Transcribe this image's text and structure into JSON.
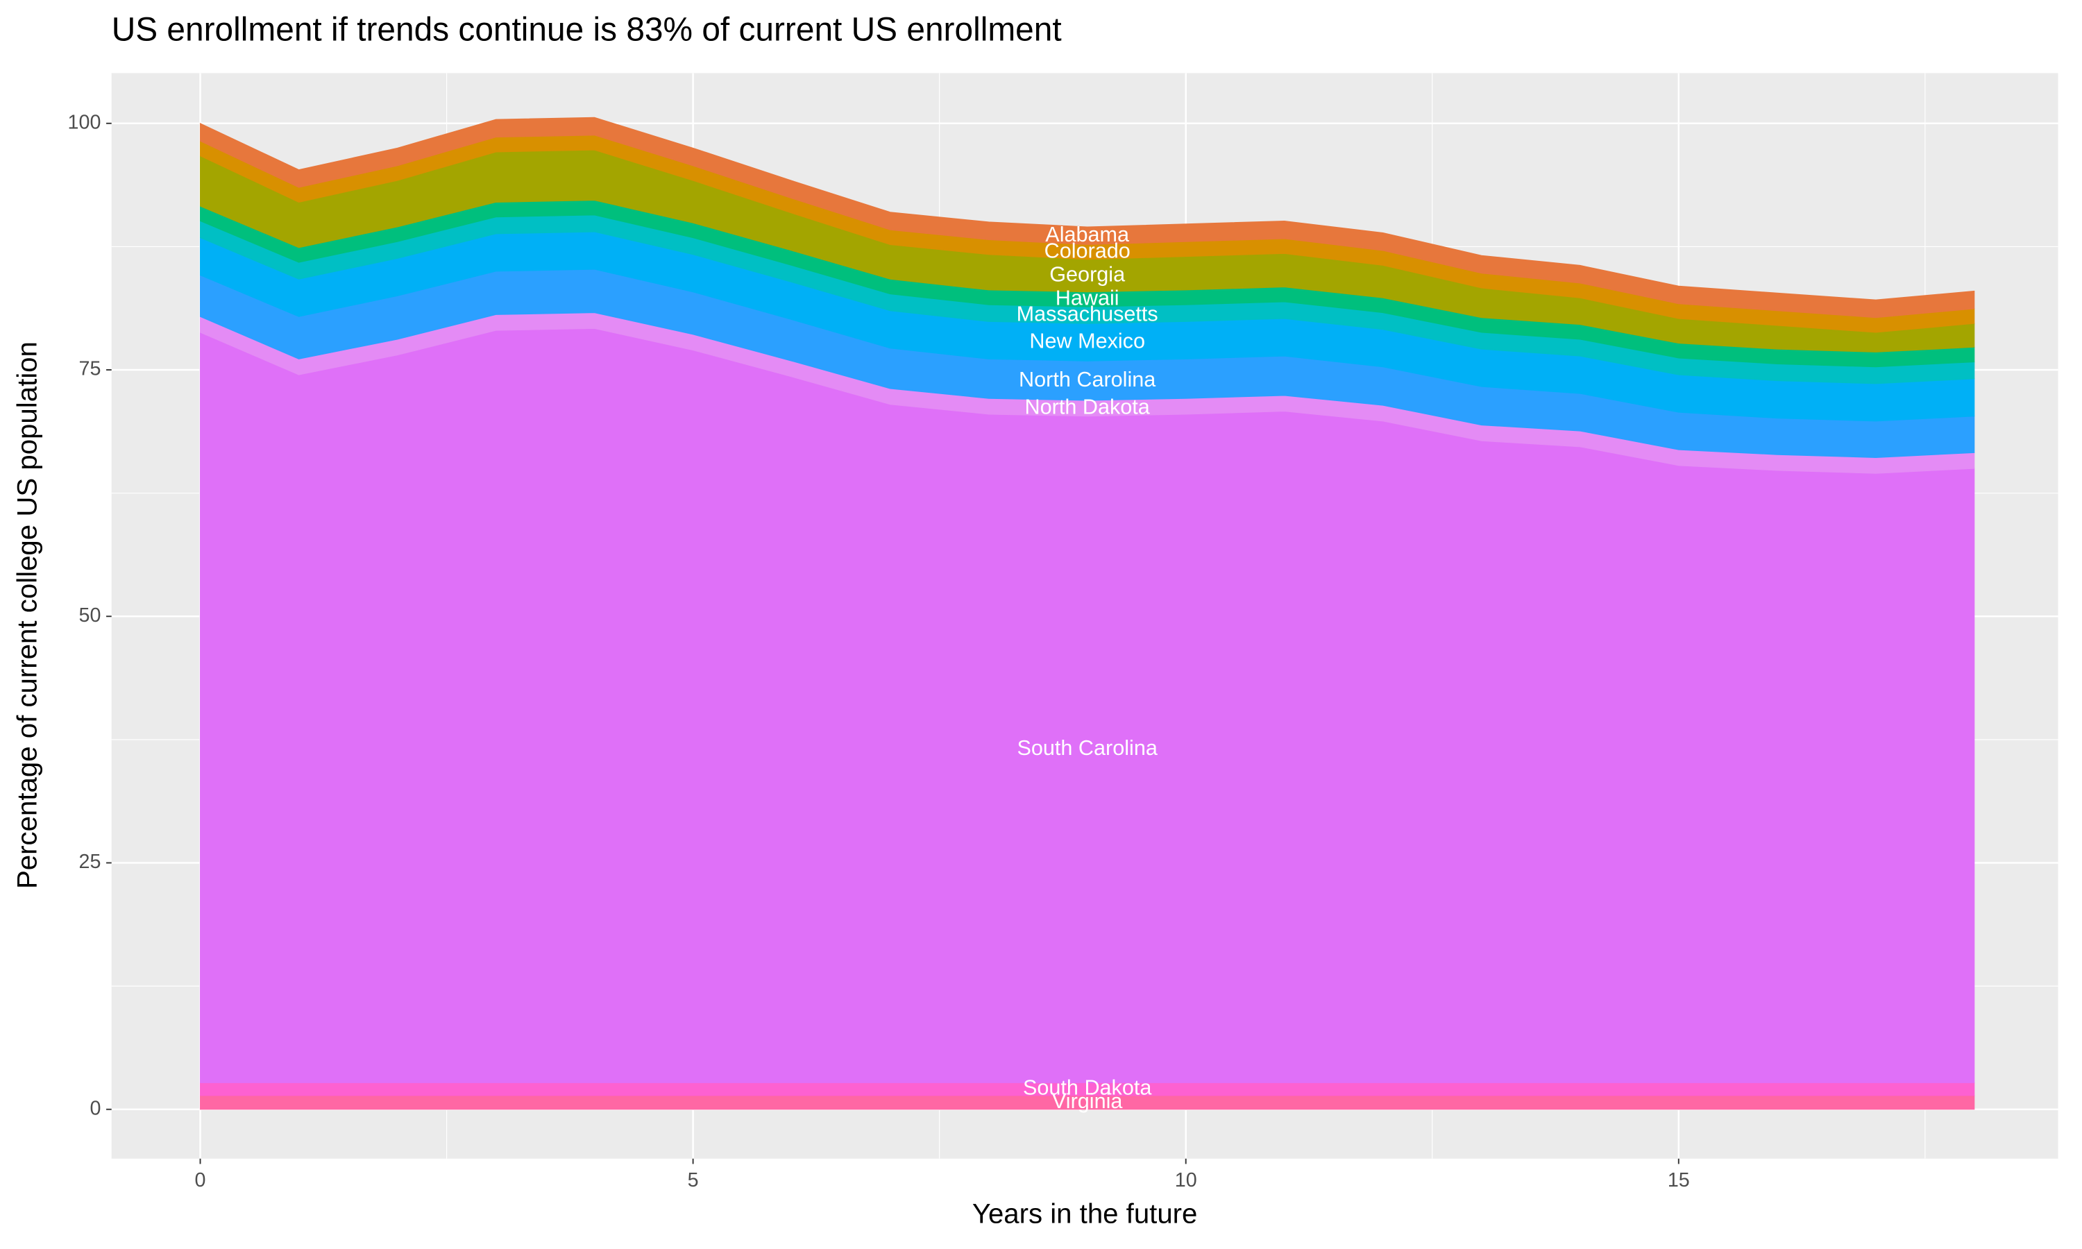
{
  "chart_data": {
    "type": "stacked_area",
    "title": "US enrollment if trends continue is 83% of current US enrollment",
    "x_label": "Years in the future",
    "y_label": "Percentage of current college US population",
    "x": [
      0,
      1,
      2,
      3,
      4,
      5,
      6,
      7,
      8,
      9,
      10,
      11,
      12,
      13,
      14,
      15,
      16,
      17,
      18
    ],
    "xlim": [
      -0.9,
      18.85
    ],
    "ylim": [
      -5,
      105.1
    ],
    "xticks": [
      0,
      5,
      10,
      15
    ],
    "yticks": [
      0,
      25,
      50,
      75,
      100
    ],
    "grid": true,
    "series": [
      {
        "name": "Virginia",
        "color": "#ff67a4",
        "values": [
          1.4,
          1.4,
          1.4,
          1.4,
          1.4,
          1.4,
          1.4,
          1.4,
          1.4,
          1.4,
          1.4,
          1.4,
          1.4,
          1.4,
          1.4,
          1.4,
          1.4,
          1.4,
          1.4
        ]
      },
      {
        "name": "South Dakota",
        "color": "#fd61d1",
        "values": [
          1.3,
          1.3,
          1.3,
          1.3,
          1.3,
          1.3,
          1.3,
          1.3,
          1.3,
          1.3,
          1.3,
          1.3,
          1.3,
          1.3,
          1.3,
          1.3,
          1.3,
          1.3,
          1.3
        ]
      },
      {
        "name": "South Carolina",
        "color": "#df70f8",
        "values": [
          76.1,
          71.8,
          73.8,
          76.3,
          76.5,
          74.3,
          71.6,
          68.8,
          67.8,
          67.6,
          67.8,
          68.1,
          67.1,
          65.1,
          64.5,
          62.6,
          62.1,
          61.8,
          62.3
        ]
      },
      {
        "name": "North Dakota",
        "color": "#e48bf5",
        "values": [
          1.6,
          1.6,
          1.6,
          1.6,
          1.6,
          1.6,
          1.6,
          1.6,
          1.6,
          1.6,
          1.6,
          1.6,
          1.6,
          1.6,
          1.6,
          1.6,
          1.6,
          1.6,
          1.6
        ]
      },
      {
        "name": "North Carolina",
        "color": "#2ba0ff",
        "values": [
          4.2,
          4.3,
          4.4,
          4.4,
          4.4,
          4.3,
          4.2,
          4.1,
          4,
          4,
          4,
          4,
          3.9,
          3.9,
          3.8,
          3.8,
          3.7,
          3.7,
          3.7
        ]
      },
      {
        "name": "New Mexico",
        "color": "#00b0f6",
        "values": [
          3.8,
          3.8,
          3.8,
          3.8,
          3.8,
          3.8,
          3.8,
          3.8,
          3.8,
          3.8,
          3.8,
          3.8,
          3.8,
          3.8,
          3.8,
          3.8,
          3.8,
          3.8,
          3.8
        ]
      },
      {
        "name": "Massachusetts",
        "color": "#00bfc4",
        "values": [
          1.7,
          1.7,
          1.7,
          1.7,
          1.7,
          1.7,
          1.7,
          1.7,
          1.7,
          1.7,
          1.7,
          1.7,
          1.7,
          1.7,
          1.7,
          1.7,
          1.7,
          1.7,
          1.7
        ]
      },
      {
        "name": "Hawaii",
        "color": "#00bf7d",
        "values": [
          1.5,
          1.5,
          1.5,
          1.5,
          1.5,
          1.5,
          1.5,
          1.5,
          1.5,
          1.5,
          1.5,
          1.5,
          1.5,
          1.5,
          1.5,
          1.5,
          1.5,
          1.5,
          1.5
        ]
      },
      {
        "name": "Georgia",
        "color": "#a3a500",
        "values": [
          5.1,
          4.6,
          4.7,
          5.1,
          5.1,
          4.3,
          3.8,
          3.5,
          3.6,
          3.3,
          3.4,
          3.4,
          3.3,
          3.0,
          2.7,
          2.5,
          2.4,
          2.0,
          2.4
        ]
      },
      {
        "name": "Colorado",
        "color": "#d89000",
        "values": [
          1.5,
          1.5,
          1.5,
          1.5,
          1.5,
          1.5,
          1.5,
          1.5,
          1.5,
          1.5,
          1.5,
          1.5,
          1.5,
          1.5,
          1.5,
          1.5,
          1.5,
          1.5,
          1.5
        ]
      },
      {
        "name": "Alabama",
        "color": "#e7773c",
        "values": [
          1.8,
          1.8,
          1.8,
          1.8,
          1.8,
          1.8,
          1.8,
          1.8,
          1.8,
          1.8,
          1.8,
          1.8,
          1.8,
          1.8,
          1.8,
          1.8,
          1.8,
          1.8,
          1.8
        ]
      }
    ]
  }
}
